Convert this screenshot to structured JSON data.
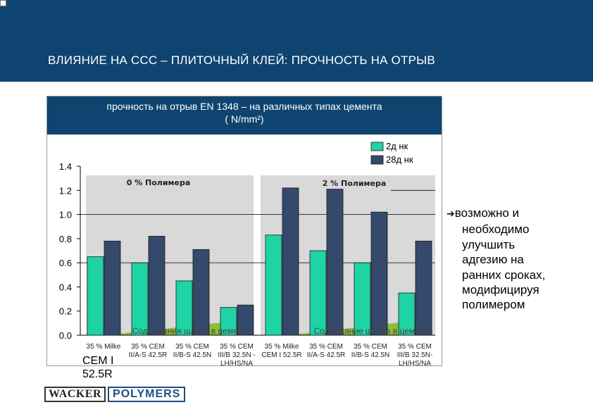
{
  "header": {
    "title": "ВЛИЯНИЕ НА ССС – ПЛИТОЧНЫЙ КЛЕЙ: ПРОЧНОСТЬ НА ОТРЫВ"
  },
  "chart_title": {
    "line1": "прочность на отрыв EN 1348 – на различных типах цемента",
    "line2": "( N/mm²)"
  },
  "note": {
    "lines": [
      "возможно и",
      "необходимо",
      "улучшить",
      "адгезию на",
      "ранних сроках,",
      "модифицируя",
      "полимером"
    ]
  },
  "logo": {
    "part1": "WACKER",
    "part2": "POLYMERS"
  },
  "colors": {
    "header": "#0f4470",
    "series1": "#1ed3a4",
    "series2": "#34496b",
    "slag": "#90bc3c"
  },
  "chart_data": {
    "type": "bar",
    "ylim": [
      0,
      1.4
    ],
    "yticks": [
      "0.0",
      "0.2",
      "0.4",
      "0.6",
      "0.8",
      "1.0",
      "1.2",
      "1.4"
    ],
    "grid": false,
    "legend": "top-right",
    "categories": [
      [
        "35 % Milke",
        "CEM I",
        "52.5R"
      ],
      [
        "35 % CEM",
        "II/A-S 42.5R"
      ],
      [
        "35 % CEM",
        "II/B-S 42.5N"
      ],
      [
        "35 % CEM",
        "III/B 32.5N -",
        "LH/HS/NA"
      ],
      [
        "35 % Milke",
        "CEM I 52.5R"
      ],
      [
        "35 % CEM",
        "II/A-S 42.5R"
      ],
      [
        "35 % CEM",
        "II/B-S 42.5N"
      ],
      [
        "35 % CEM",
        "III/B 32.5N-",
        "LH/HS/NA"
      ]
    ],
    "series": [
      {
        "name": "2д нк",
        "values": [
          0.65,
          0.6,
          0.45,
          0.23,
          0.83,
          0.7,
          0.6,
          0.35
        ]
      },
      {
        "name": "28д нк",
        "values": [
          0.78,
          0.82,
          0.71,
          0.25,
          1.22,
          1.21,
          1.02,
          0.78
        ]
      }
    ],
    "groups": [
      {
        "label": "0 % Полимера",
        "annotation": "Содержания шлака в цементе"
      },
      {
        "label": "2 % Полимера",
        "annotation": "Содержание шлака в цементе"
      }
    ]
  }
}
